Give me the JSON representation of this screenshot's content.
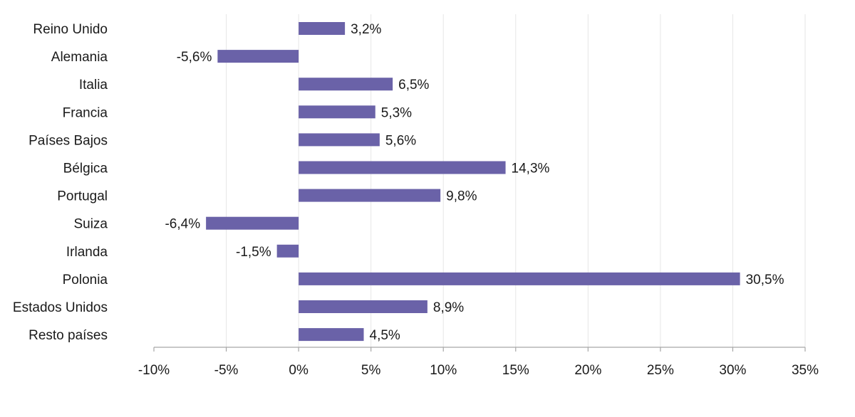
{
  "chart_data": {
    "type": "bar",
    "orientation": "horizontal",
    "categories": [
      "Reino Unido",
      "Alemania",
      "Italia",
      "Francia",
      "Países Bajos",
      "Bélgica",
      "Portugal",
      "Suiza",
      "Irlanda",
      "Polonia",
      "Estados Unidos",
      "Resto países"
    ],
    "values": [
      3.2,
      -5.6,
      6.5,
      5.3,
      5.6,
      14.3,
      9.8,
      -6.4,
      -1.5,
      30.5,
      8.9,
      4.5
    ],
    "data_labels": [
      "3,2%",
      "-5,6%",
      "6,5%",
      "5,3%",
      "5,6%",
      "14,3%",
      "9,8%",
      "-6,4%",
      "-1,5%",
      "30,5%",
      "8,9%",
      "4,5%"
    ],
    "x_ticks": [
      -10,
      -5,
      0,
      5,
      10,
      15,
      20,
      25,
      30,
      35
    ],
    "x_tick_labels": [
      "-10%",
      "-5%",
      "0%",
      "5%",
      "10%",
      "15%",
      "20%",
      "25%",
      "30%",
      "35%"
    ],
    "xlim": [
      -10,
      35
    ],
    "grid": "vertical",
    "legend": "none",
    "bar_color": "#6a62a8",
    "title": "",
    "xlabel": "",
    "ylabel": ""
  }
}
